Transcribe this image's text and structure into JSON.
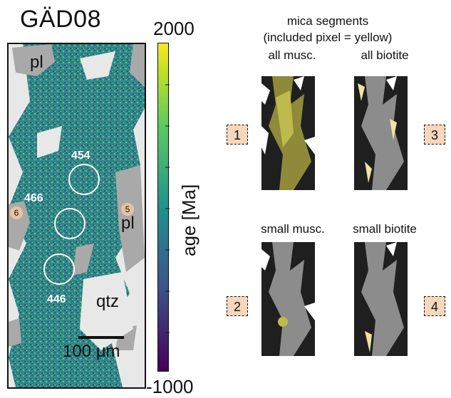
{
  "figure": {
    "sample_title": "GÄD08",
    "map_labels": {
      "pl_top": "pl",
      "pl_right": "pl",
      "qtz": "qtz",
      "age_454": "454",
      "age_466": "466",
      "age_446": "446",
      "badge_6": "6",
      "badge_5": "5"
    },
    "scalebar": "100 μm",
    "colorbar": {
      "max": "2000",
      "min": "-1000",
      "label": "age [Ma]",
      "colors": [
        "#fde725",
        "#5ec962",
        "#21918c",
        "#3b528b",
        "#440154"
      ]
    },
    "right": {
      "header_line1": "mica segments",
      "header_line2": "(included pixel = yellow)",
      "top_left_title": "all musc.",
      "top_right_title": "all biotite",
      "bottom_left_title": "small musc.",
      "bottom_right_title": "small biotite",
      "box1": "1",
      "box2": "2",
      "box3": "3",
      "box4": "4"
    }
  }
}
